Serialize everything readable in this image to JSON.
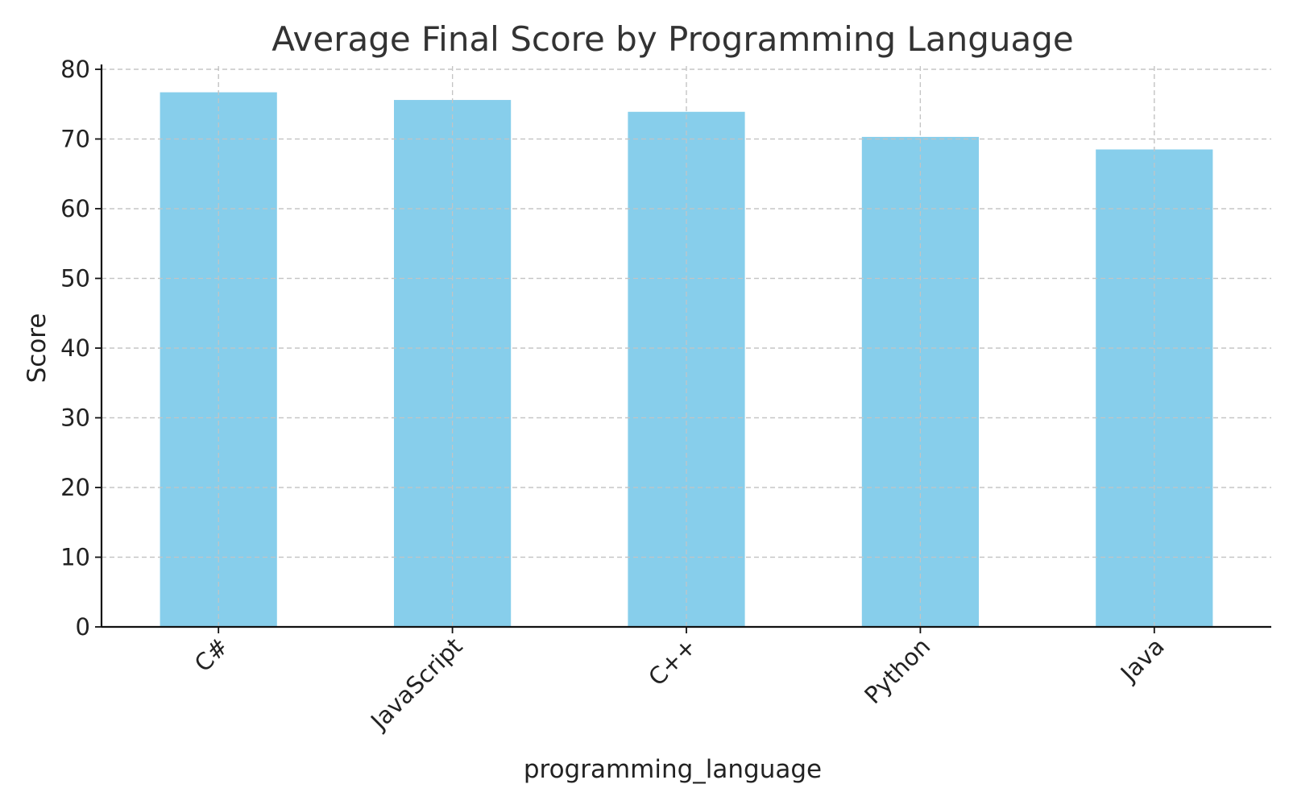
{
  "chart_data": {
    "type": "bar",
    "title": "Average Final Score by Programming Language",
    "xlabel": "programming_language",
    "ylabel": "Score",
    "categories": [
      "C#",
      "JavaScript",
      "C++",
      "Python",
      "Java"
    ],
    "values": [
      76.7,
      75.6,
      73.9,
      70.3,
      68.5
    ],
    "ylim": [
      0,
      80
    ],
    "yticks": [
      0,
      10,
      20,
      30,
      40,
      50,
      60,
      70,
      80
    ],
    "grid": true,
    "bar_color": "#87CEEB",
    "legend": "none"
  }
}
